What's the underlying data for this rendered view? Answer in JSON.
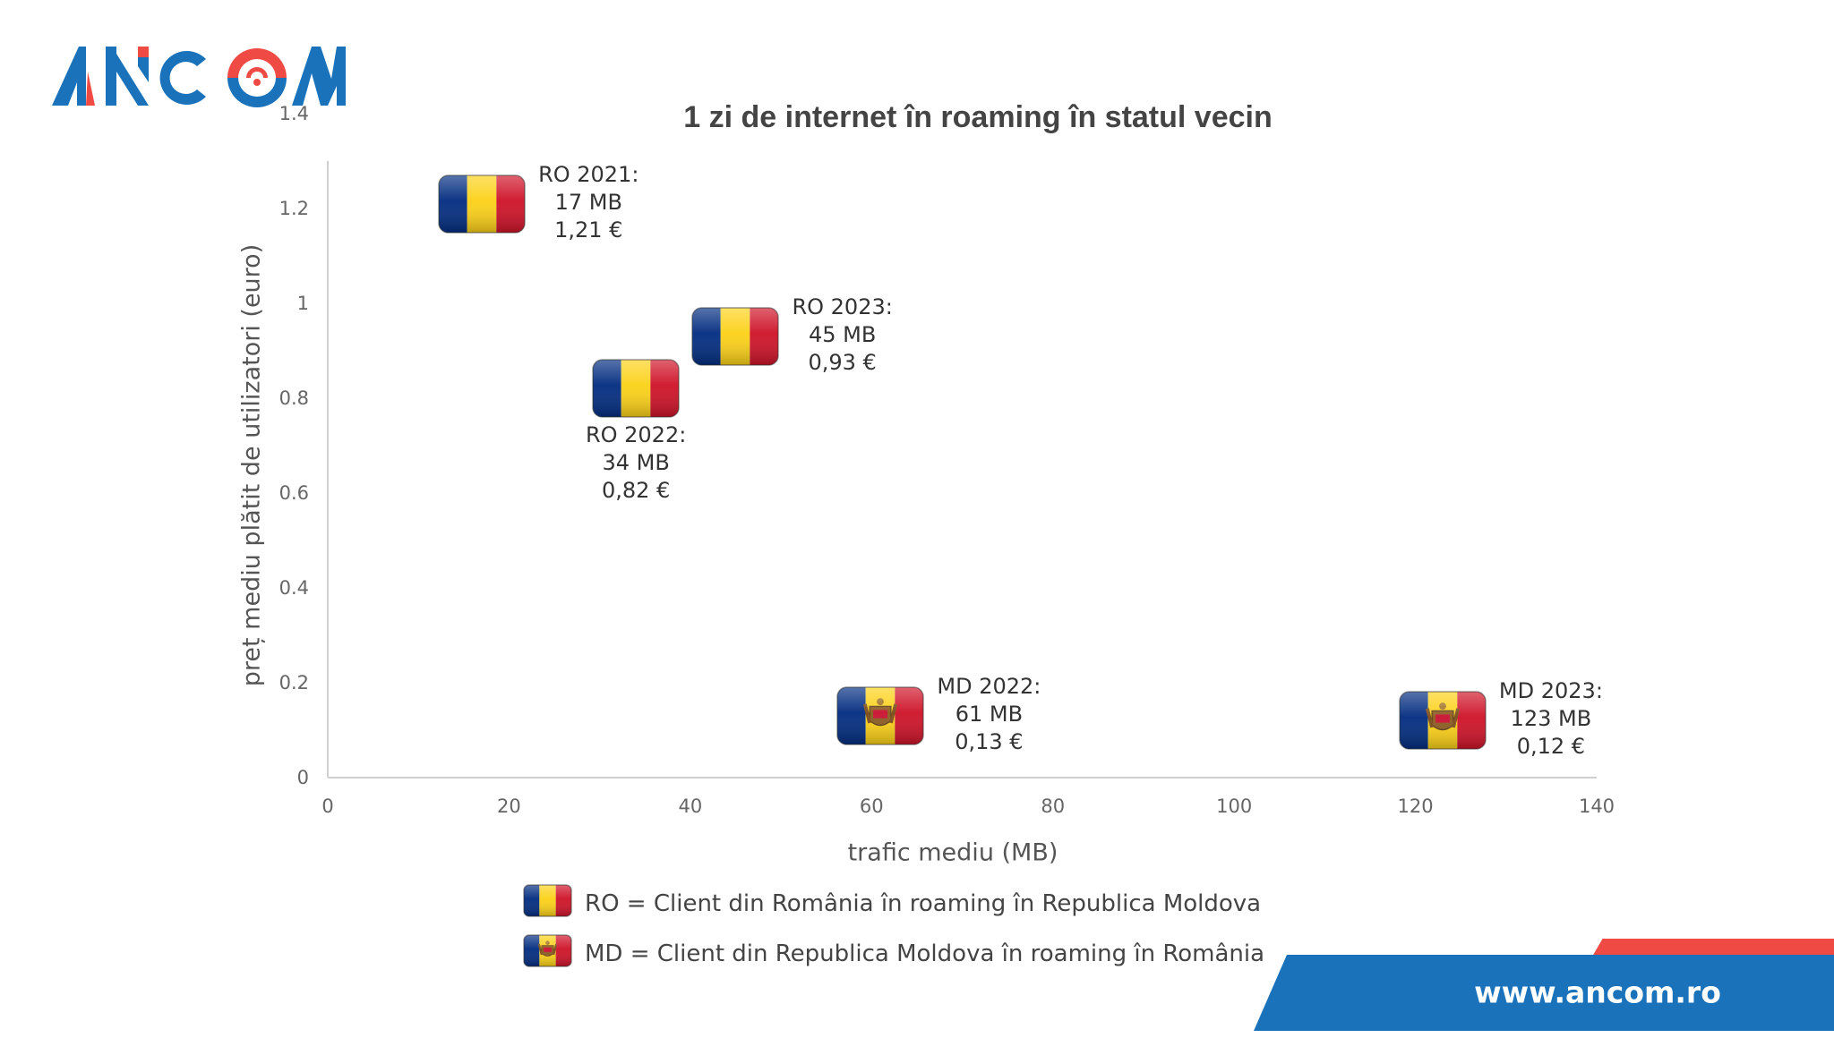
{
  "logo": {
    "text": "ANCOM",
    "blue": "#1a72bb",
    "red": "#ef4b44"
  },
  "footer": {
    "url": "www.ancom.ro"
  },
  "legend": [
    {
      "flag": "ro",
      "text": "RO = Client din România în roaming în Republica Moldova"
    },
    {
      "flag": "md",
      "text": "MD = Client din Republica Moldova în roaming în România"
    }
  ],
  "chart_data": {
    "type": "scatter",
    "title": "1 zi de internet în roaming în statul vecin",
    "xlabel": "trafic mediu (MB)",
    "ylabel": "preț mediu plătit de utilizatori (euro)",
    "xlim": [
      0,
      140
    ],
    "ylim": [
      0,
      1.4
    ],
    "xticks": [
      "0",
      "20",
      "40",
      "60",
      "80",
      "100",
      "120",
      "140"
    ],
    "yticks": [
      "0",
      "0.2",
      "0.4",
      "0.6",
      "0.8",
      "1",
      "1.2",
      "1.4"
    ],
    "grid": false,
    "marker": "flag",
    "points": [
      {
        "name": "RO 2021",
        "flag": "ro",
        "x": 17,
        "y": 1.21,
        "label": [
          "RO 2021:",
          "17 MB",
          "1,21 €"
        ],
        "label_side": "right"
      },
      {
        "name": "RO 2022",
        "flag": "ro",
        "x": 34,
        "y": 0.82,
        "label": [
          "RO 2022:",
          "34 MB",
          "0,82 €"
        ],
        "label_side": "below"
      },
      {
        "name": "RO 2023",
        "flag": "ro",
        "x": 45,
        "y": 0.93,
        "label": [
          "RO 2023:",
          "45 MB",
          "0,93 €"
        ],
        "label_side": "right"
      },
      {
        "name": "MD 2022",
        "flag": "md",
        "x": 61,
        "y": 0.13,
        "label": [
          "MD 2022:",
          "61 MB",
          "0,13 €"
        ],
        "label_side": "right"
      },
      {
        "name": "MD 2023",
        "flag": "md",
        "x": 123,
        "y": 0.12,
        "label": [
          "MD 2023:",
          "123 MB",
          "0,12 €"
        ],
        "label_side": "right"
      }
    ]
  }
}
